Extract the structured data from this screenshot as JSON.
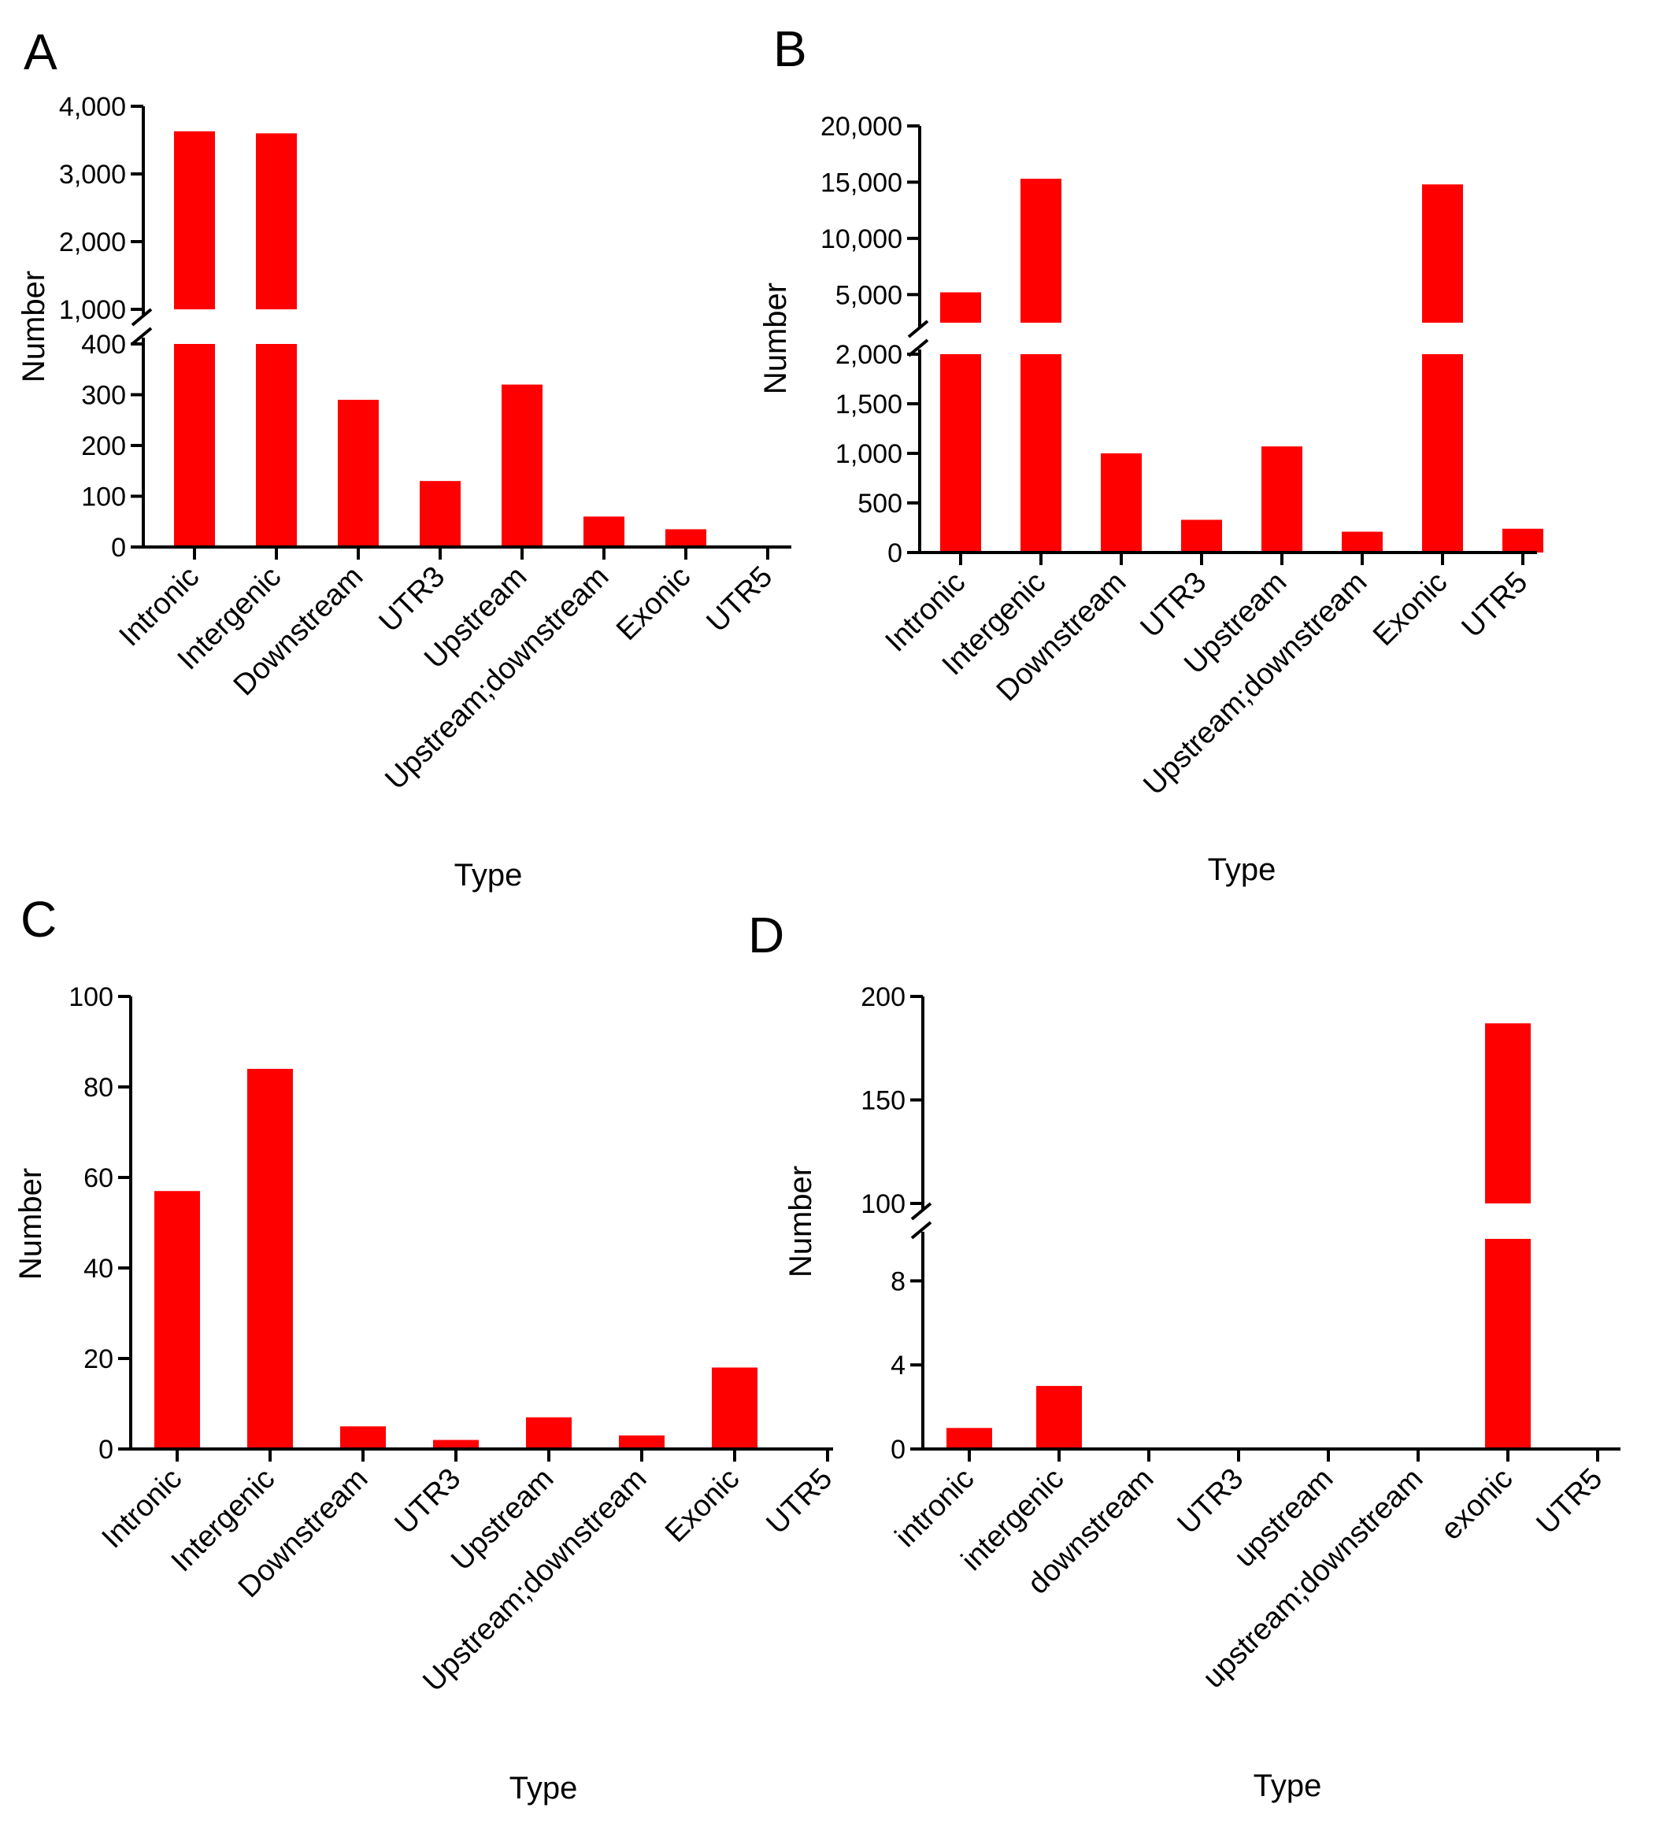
{
  "figure": {
    "panels": [
      {
        "id": "A",
        "letter": "A"
      },
      {
        "id": "B",
        "letter": "B"
      },
      {
        "id": "C",
        "letter": "C"
      },
      {
        "id": "D",
        "letter": "D"
      }
    ]
  },
  "colors": {
    "bar": "#ff0000",
    "axis": "#000000",
    "background": "#ffffff"
  },
  "chart_data": [
    {
      "panel": "A",
      "type": "bar",
      "xlabel": "Type",
      "ylabel": "Number",
      "categories": [
        "Intronic",
        "Intergenic",
        "Downstream",
        "UTR3",
        "Upstream",
        "Upstream;downstream",
        "Exonic",
        "UTR5"
      ],
      "values": [
        3630,
        3600,
        290,
        130,
        320,
        60,
        35,
        0
      ],
      "axis_break": true,
      "segments": [
        {
          "range": [
            0,
            400
          ],
          "ticks": [
            0,
            100,
            200,
            300,
            400
          ],
          "tick_labels": [
            "0",
            "100",
            "200",
            "300",
            "400"
          ]
        },
        {
          "range": [
            1000,
            4000
          ],
          "ticks": [
            1000,
            2000,
            3000,
            4000
          ],
          "tick_labels": [
            "1,000",
            "2,000",
            "3,000",
            "4,000"
          ]
        }
      ]
    },
    {
      "panel": "B",
      "type": "bar",
      "xlabel": "Type",
      "ylabel": "Number",
      "categories": [
        "Intronic",
        "Intergenic",
        "Downstream",
        "UTR3",
        "Upstream",
        "Upstream;downstream",
        "Exonic",
        "UTR5"
      ],
      "values": [
        5200,
        15300,
        1000,
        330,
        1070,
        210,
        14800,
        240
      ],
      "axis_break": true,
      "segments": [
        {
          "range": [
            0,
            2000
          ],
          "ticks": [
            0,
            500,
            1000,
            1500,
            2000
          ],
          "tick_labels": [
            "0",
            "500",
            "1,000",
            "1,500",
            "2,000"
          ]
        },
        {
          "range": [
            2500,
            20000
          ],
          "ticks": [
            5000,
            10000,
            15000,
            20000
          ],
          "tick_labels": [
            "5,000",
            "10,000",
            "15,000",
            "20,000"
          ]
        }
      ]
    },
    {
      "panel": "C",
      "type": "bar",
      "xlabel": "Type",
      "ylabel": "Number",
      "categories": [
        "Intronic",
        "Intergenic",
        "Downstream",
        "UTR3",
        "Upstream",
        "Upstream;downstream",
        "Exonic",
        "UTR5"
      ],
      "values": [
        57,
        84,
        5,
        2,
        7,
        3,
        18,
        0
      ],
      "axis_break": false,
      "segments": [
        {
          "range": [
            0,
            100
          ],
          "ticks": [
            0,
            20,
            40,
            60,
            80,
            100
          ],
          "tick_labels": [
            "0",
            "20",
            "40",
            "60",
            "80",
            "100"
          ]
        }
      ]
    },
    {
      "panel": "D",
      "type": "bar",
      "xlabel": "Type",
      "ylabel": "Number",
      "categories": [
        "intronic",
        "intergenic",
        "downstream",
        "UTR3",
        "upstream",
        "upstream;downstream",
        "exonic",
        "UTR5"
      ],
      "values": [
        1,
        3,
        0,
        0,
        0,
        0,
        187,
        0
      ],
      "axis_break": true,
      "segments": [
        {
          "range": [
            0,
            10
          ],
          "ticks": [
            0,
            4,
            8
          ],
          "tick_labels": [
            "0",
            "4",
            "8"
          ]
        },
        {
          "range": [
            100,
            200
          ],
          "ticks": [
            100,
            150,
            200
          ],
          "tick_labels": [
            "100",
            "150",
            "200"
          ]
        }
      ]
    }
  ]
}
